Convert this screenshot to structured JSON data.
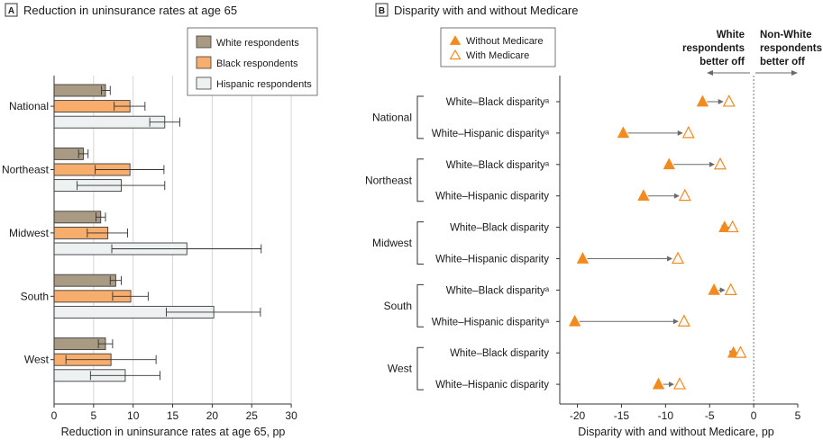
{
  "colors": {
    "white": "#a89a83",
    "black": "#f7ad6c",
    "hispanic": "#eef1f1",
    "bar_stroke": "#3c3c3c",
    "grid": "#d6d6d6",
    "marker": "#f28a1e",
    "arrow": "#6a6a6a"
  },
  "panelA": {
    "letter": "A",
    "title": "Reduction in uninsurance rates at age 65"
  },
  "panelB": {
    "letter": "B",
    "title": "Disparity with and without Medicare",
    "legend": {
      "without": "Without Medicare",
      "with": "With Medicare"
    },
    "direction_left": [
      "White",
      "respondents",
      "better off"
    ],
    "direction_right": [
      "Non-White",
      "respondents",
      "better off"
    ]
  },
  "chart_data": [
    {
      "type": "bar",
      "orientation": "horizontal",
      "title": "Reduction in uninsurance rates at age 65",
      "xlabel": "Reduction in uninsurance rates at age 65, pp",
      "ylabel": "",
      "xlim": [
        0,
        30
      ],
      "xticks": [
        0,
        5,
        10,
        15,
        20,
        25,
        30
      ],
      "grid": true,
      "legend_position": "top-right",
      "categories": [
        "National",
        "Northeast",
        "Midwest",
        "South",
        "West"
      ],
      "series": [
        {
          "name": "White respondents",
          "values": [
            6.5,
            3.7,
            5.9,
            7.8,
            6.5
          ],
          "ci_low": [
            6.0,
            3.1,
            5.3,
            7.1,
            5.6
          ],
          "ci_high": [
            7.1,
            4.3,
            6.5,
            8.5,
            7.4
          ]
        },
        {
          "name": "Black respondents",
          "values": [
            9.6,
            9.6,
            6.8,
            9.7,
            7.2
          ],
          "ci_low": [
            7.6,
            5.2,
            4.2,
            7.4,
            1.5
          ],
          "ci_high": [
            11.5,
            13.9,
            9.3,
            11.9,
            12.9
          ]
        },
        {
          "name": "Hispanic respondents",
          "values": [
            14.0,
            8.5,
            16.8,
            20.2,
            9.0
          ],
          "ci_low": [
            12.1,
            2.9,
            7.3,
            14.2,
            4.6
          ],
          "ci_high": [
            15.9,
            14.0,
            26.2,
            26.1,
            13.4
          ]
        }
      ]
    },
    {
      "type": "scatter",
      "title": "Disparity with and without Medicare",
      "xlabel": "Disparity with and without Medicare, pp",
      "ylabel": "",
      "xlim": [
        -22,
        5
      ],
      "xticks": [
        -20,
        -15,
        -10,
        -5,
        0,
        5
      ],
      "reference_line": 0,
      "grid": false,
      "legend_position": "top-left",
      "groups": [
        {
          "name": "National",
          "rows": [
            {
              "label": "White–Black disparityᵃ",
              "without": -5.8,
              "with": -2.8
            },
            {
              "label": "White–Hispanic disparityᵃ",
              "without": -14.8,
              "with": -7.4
            }
          ]
        },
        {
          "name": "Northeast",
          "rows": [
            {
              "label": "White–Black disparityᵃ",
              "without": -9.6,
              "with": -3.8
            },
            {
              "label": "White–Hispanic disparity",
              "without": -12.5,
              "with": -7.8
            }
          ]
        },
        {
          "name": "Midwest",
          "rows": [
            {
              "label": "White–Black disparity",
              "without": -3.3,
              "with": -2.4
            },
            {
              "label": "White–Hispanic disparity",
              "without": -19.4,
              "with": -8.6
            }
          ]
        },
        {
          "name": "South",
          "rows": [
            {
              "label": "White–Black disparityᵃ",
              "without": -4.5,
              "with": -2.6
            },
            {
              "label": "White–Hispanic disparityᵃ",
              "without": -20.3,
              "with": -7.9
            }
          ]
        },
        {
          "name": "West",
          "rows": [
            {
              "label": "White–Black disparity",
              "without": -2.3,
              "with": -1.5
            },
            {
              "label": "White–Hispanic disparity",
              "without": -10.8,
              "with": -8.4
            }
          ]
        }
      ]
    }
  ]
}
